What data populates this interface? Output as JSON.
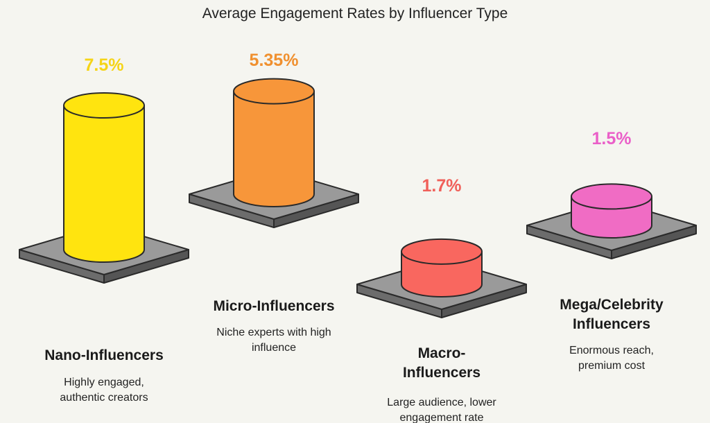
{
  "chart_data": {
    "type": "bar",
    "title": "Average Engagement Rates by Influencer Type",
    "unit": "%",
    "categories": [
      "Nano-Influencers",
      "Micro-Influencers",
      "Macro-Influencers",
      "Mega/Celebrity Influencers"
    ],
    "values": [
      7.5,
      5.35,
      1.7,
      1.5
    ],
    "value_labels": [
      "7.5%",
      "5.35%",
      "1.7%",
      "1.5%"
    ],
    "colors": [
      "#FFE40F",
      "#F7963A",
      "#F9675F",
      "#F06CC4"
    ],
    "label_colors": [
      "#F5D417",
      "#F0902F",
      "#F0605A",
      "#EA5FC8"
    ],
    "items": [
      {
        "label_lines": [
          "Nano-Influencers"
        ],
        "desc_lines": [
          "Highly engaged,",
          "authentic creators"
        ]
      },
      {
        "label_lines": [
          "Micro-Influencers"
        ],
        "desc_lines": [
          "Niche experts with high",
          "influence"
        ]
      },
      {
        "label_lines": [
          "Macro-",
          "Influencers"
        ],
        "desc_lines": [
          "Large audience, lower",
          "engagement rate"
        ]
      },
      {
        "label_lines": [
          "Mega/Celebrity",
          "Influencers"
        ],
        "desc_lines": [
          "Enormous reach,",
          "premium cost"
        ]
      }
    ]
  }
}
